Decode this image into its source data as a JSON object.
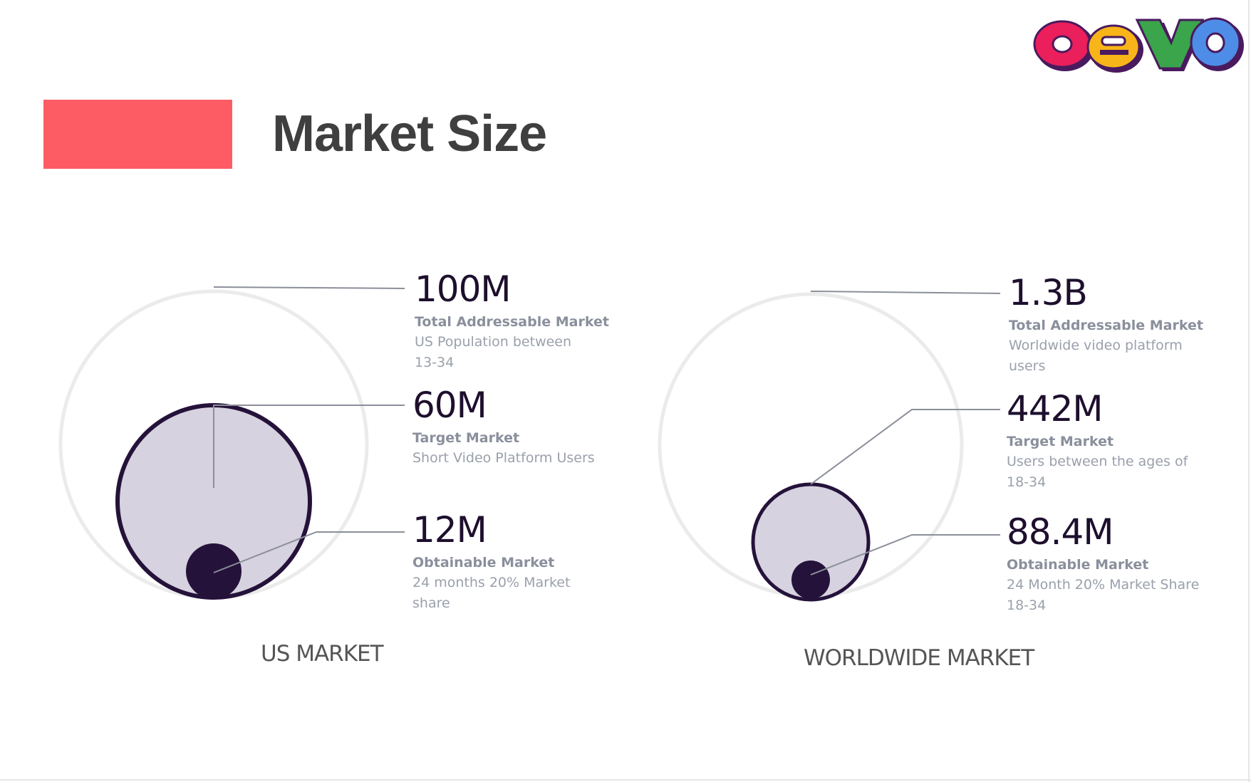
{
  "slide": {
    "title": "Market Size",
    "accent_color": "#fd5c64"
  },
  "logo": {
    "text": "oevo",
    "letters": [
      {
        "char": "o",
        "color": "#ea1f5b"
      },
      {
        "char": "e",
        "color": "#f7b51a"
      },
      {
        "char": "v",
        "color": "#3aa54b"
      },
      {
        "char": "o",
        "color": "#4d8de8"
      }
    ],
    "outline_color": "#4a1a5e"
  },
  "colors": {
    "outer_ring": "#ebebeb",
    "target_fill": "#d6d2df",
    "target_stroke": "#25123a",
    "obtainable_fill": "#25123a",
    "leader_line": "#8b8f99"
  },
  "markets": [
    {
      "caption": "US MARKET",
      "tiers": [
        {
          "value": "100M",
          "name": "Total Addressable Market",
          "desc": "US Population between 13-34"
        },
        {
          "value": "60M",
          "name": "Target Market",
          "desc": "Short Video Platform Users"
        },
        {
          "value": "12M",
          "name": "Obtainable Market",
          "desc": "24 months 20% Market share"
        }
      ]
    },
    {
      "caption": "WORLDWIDE MARKET",
      "tiers": [
        {
          "value": "1.3B",
          "name": "Total Addressable Market",
          "desc": "Worldwide video platform users"
        },
        {
          "value": "442M",
          "name": "Target Market",
          "desc": "Users between the ages of 18-34"
        },
        {
          "value": "88.4M",
          "name": "Obtainable Market",
          "desc": "24 Month 20% Market Share 18-34"
        }
      ]
    }
  ]
}
